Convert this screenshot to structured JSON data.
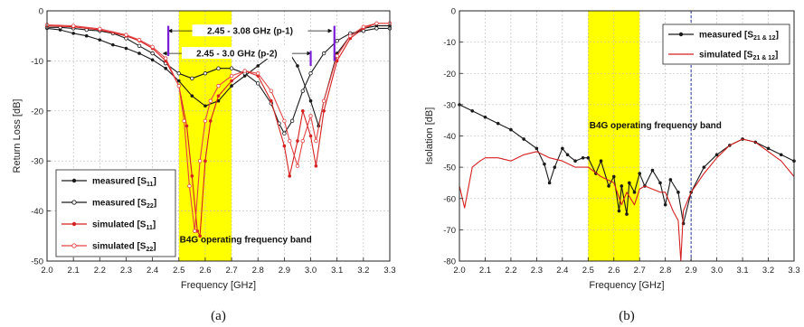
{
  "chart_data": [
    {
      "id": "a",
      "type": "line",
      "panel_label": "(a)",
      "xlabel": "Frequency [GHz]",
      "ylabel": "Return Loss [dB]",
      "xlim": [
        2.0,
        3.3
      ],
      "ylim": [
        -50,
        0
      ],
      "xticks": [
        "2.0",
        "2.1",
        "2.2",
        "2.3",
        "2.4",
        "2.5",
        "2.6",
        "2.7",
        "2.8",
        "2.9",
        "3.0",
        "3.1",
        "3.2",
        "3.3"
      ],
      "yticks": [
        "0",
        "-10",
        "-20",
        "-30",
        "-40",
        "-50"
      ],
      "grid": true,
      "band": {
        "x0": 2.5,
        "x1": 2.7,
        "label": "B4G operating frequency band",
        "color": "#ffff00"
      },
      "annotations": [
        {
          "text": "2.45 - 3.08 GHz (p-1)",
          "x0": 2.46,
          "x1": 3.08,
          "y": -4
        },
        {
          "text": "2.45 - 3.0 GHz (p-2)",
          "x0": 2.44,
          "x1": 3.0,
          "y": -8.5
        }
      ],
      "markers": [
        {
          "x": 2.46,
          "y0": -3,
          "y1": -9,
          "color": "#7a1fd6"
        },
        {
          "x": 3.0,
          "y0": -8,
          "y1": -11,
          "color": "#7a1fd6"
        },
        {
          "x": 3.09,
          "y0": -3,
          "y1": -10,
          "color": "#7a1fd6"
        }
      ],
      "legend_position": "bottom-left",
      "series": [
        {
          "label": "measured",
          "sub": "11",
          "color": "#1a1a1a",
          "marker": "dot",
          "x": [
            2.0,
            2.05,
            2.1,
            2.15,
            2.2,
            2.25,
            2.3,
            2.35,
            2.4,
            2.45,
            2.5,
            2.55,
            2.6,
            2.65,
            2.7,
            2.75,
            2.8,
            2.85,
            2.9,
            2.92,
            2.95,
            3.0,
            3.03,
            3.05,
            3.1,
            3.15,
            3.2,
            3.25,
            3.3
          ],
          "y": [
            -3.5,
            -3.8,
            -4.5,
            -5,
            -5.8,
            -6.8,
            -7.5,
            -8.5,
            -9.8,
            -11.5,
            -14,
            -17,
            -19,
            -18,
            -15,
            -13,
            -11,
            -9,
            -8,
            -8.5,
            -11,
            -18,
            -23,
            -18,
            -8.5,
            -5,
            -3.5,
            -3,
            -3
          ]
        },
        {
          "label": "measured",
          "sub": "22",
          "color": "#1a1a1a",
          "marker": "open",
          "x": [
            2.0,
            2.05,
            2.1,
            2.15,
            2.2,
            2.25,
            2.3,
            2.35,
            2.4,
            2.45,
            2.5,
            2.55,
            2.6,
            2.65,
            2.7,
            2.75,
            2.8,
            2.85,
            2.88,
            2.9,
            2.93,
            2.97,
            3.0,
            3.05,
            3.1,
            3.15,
            3.2,
            3.25,
            3.3
          ],
          "y": [
            -3.3,
            -3.3,
            -3.5,
            -3.8,
            -4,
            -4.5,
            -5.5,
            -7,
            -8.5,
            -10.5,
            -12.5,
            -13.5,
            -12.5,
            -11.5,
            -11.5,
            -12.5,
            -14.5,
            -18.5,
            -22.5,
            -24.5,
            -22,
            -16,
            -12.5,
            -8.5,
            -6,
            -4.5,
            -4,
            -3.5,
            -3.5
          ]
        },
        {
          "label": "simulated",
          "sub": "11",
          "color": "#d42020",
          "marker": "dot",
          "x": [
            2.0,
            2.1,
            2.2,
            2.3,
            2.35,
            2.4,
            2.45,
            2.5,
            2.53,
            2.55,
            2.57,
            2.58,
            2.6,
            2.62,
            2.65,
            2.7,
            2.75,
            2.8,
            2.85,
            2.9,
            2.92,
            2.95,
            2.97,
            3.0,
            3.02,
            3.05,
            3.1,
            3.15,
            3.2,
            3.25,
            3.3
          ],
          "y": [
            -3,
            -3.2,
            -3.8,
            -5,
            -6,
            -7.5,
            -10,
            -15,
            -23,
            -33,
            -44,
            -45,
            -30,
            -22,
            -17,
            -14,
            -12,
            -13,
            -18,
            -27,
            -33,
            -26,
            -20,
            -25,
            -31,
            -20,
            -10,
            -5.5,
            -3.5,
            -2.5,
            -2.5
          ]
        },
        {
          "label": "simulated",
          "sub": "22",
          "color": "#e24444",
          "marker": "open",
          "x": [
            2.0,
            2.1,
            2.2,
            2.3,
            2.35,
            2.4,
            2.45,
            2.5,
            2.52,
            2.54,
            2.56,
            2.58,
            2.6,
            2.62,
            2.65,
            2.7,
            2.75,
            2.8,
            2.85,
            2.9,
            2.92,
            2.95,
            2.97,
            3.0,
            3.02,
            3.05,
            3.1,
            3.15,
            3.2,
            3.25,
            3.3
          ],
          "y": [
            -2.8,
            -3,
            -3.6,
            -4.8,
            -5.8,
            -7.2,
            -9.5,
            -15,
            -22,
            -35,
            -44,
            -30,
            -22,
            -18,
            -15,
            -13,
            -12,
            -12.5,
            -16,
            -22,
            -26,
            -31,
            -26,
            -21,
            -26,
            -18,
            -9,
            -5,
            -3.2,
            -2.5,
            -2.5
          ]
        }
      ]
    },
    {
      "id": "b",
      "type": "line",
      "panel_label": "(b)",
      "xlabel": "Frequency [GHz]",
      "ylabel": "Isolation [dB]",
      "xlim": [
        2.0,
        3.3
      ],
      "ylim": [
        -80,
        0
      ],
      "xticks": [
        "2.0",
        "2.1",
        "2.2",
        "2.3",
        "2.4",
        "2.5",
        "2.6",
        "2.7",
        "2.8",
        "2.9",
        "3.0",
        "3.1",
        "3.2",
        "3.3"
      ],
      "yticks": [
        "0",
        "-10",
        "-20",
        "-30",
        "-40",
        "-50",
        "-60",
        "-70",
        "-80"
      ],
      "grid": true,
      "band": {
        "x0": 2.5,
        "x1": 2.7,
        "label": "B4G operating frequency band",
        "color": "#ffff00"
      },
      "vline": {
        "x": 2.9,
        "color": "#223399"
      },
      "legend_position": "top-right",
      "series": [
        {
          "label": "measured",
          "sub": "21 & 12",
          "color": "#1a1a1a",
          "marker": "dot",
          "x": [
            2.0,
            2.05,
            2.1,
            2.15,
            2.2,
            2.25,
            2.3,
            2.33,
            2.35,
            2.37,
            2.4,
            2.42,
            2.45,
            2.48,
            2.5,
            2.53,
            2.55,
            2.58,
            2.6,
            2.62,
            2.63,
            2.65,
            2.66,
            2.68,
            2.7,
            2.72,
            2.75,
            2.78,
            2.8,
            2.82,
            2.85,
            2.87,
            2.9,
            2.95,
            3.0,
            3.05,
            3.1,
            3.15,
            3.2,
            3.25,
            3.3
          ],
          "y": [
            -30,
            -32,
            -34,
            -36,
            -38,
            -41,
            -44,
            -49,
            -55,
            -50,
            -44,
            -46,
            -48,
            -47,
            -47,
            -52,
            -48,
            -56,
            -53,
            -64,
            -56,
            -65,
            -55,
            -58,
            -52,
            -56,
            -51,
            -55,
            -62,
            -54,
            -58,
            -68,
            -58,
            -50,
            -46,
            -43,
            -41,
            -42,
            -44,
            -46,
            -48
          ]
        },
        {
          "label": "simulated",
          "sub": "21 & 12",
          "color": "#d42020",
          "marker": "none",
          "x": [
            2.0,
            2.02,
            2.05,
            2.08,
            2.1,
            2.15,
            2.2,
            2.25,
            2.3,
            2.35,
            2.4,
            2.45,
            2.5,
            2.55,
            2.6,
            2.63,
            2.65,
            2.68,
            2.7,
            2.72,
            2.75,
            2.78,
            2.8,
            2.83,
            2.85,
            2.86,
            2.87,
            2.9,
            2.95,
            3.0,
            3.05,
            3.1,
            3.15,
            3.2,
            3.25,
            3.3
          ],
          "y": [
            -56,
            -63,
            -50,
            -48,
            -47,
            -47,
            -48,
            -46,
            -45,
            -47,
            -48,
            -50,
            -50,
            -53,
            -55,
            -62,
            -58,
            -62,
            -57,
            -56,
            -57,
            -58,
            -58,
            -64,
            -67,
            -80,
            -64,
            -58,
            -52,
            -47,
            -43,
            -41,
            -42,
            -45,
            -48,
            -53
          ]
        }
      ]
    }
  ]
}
